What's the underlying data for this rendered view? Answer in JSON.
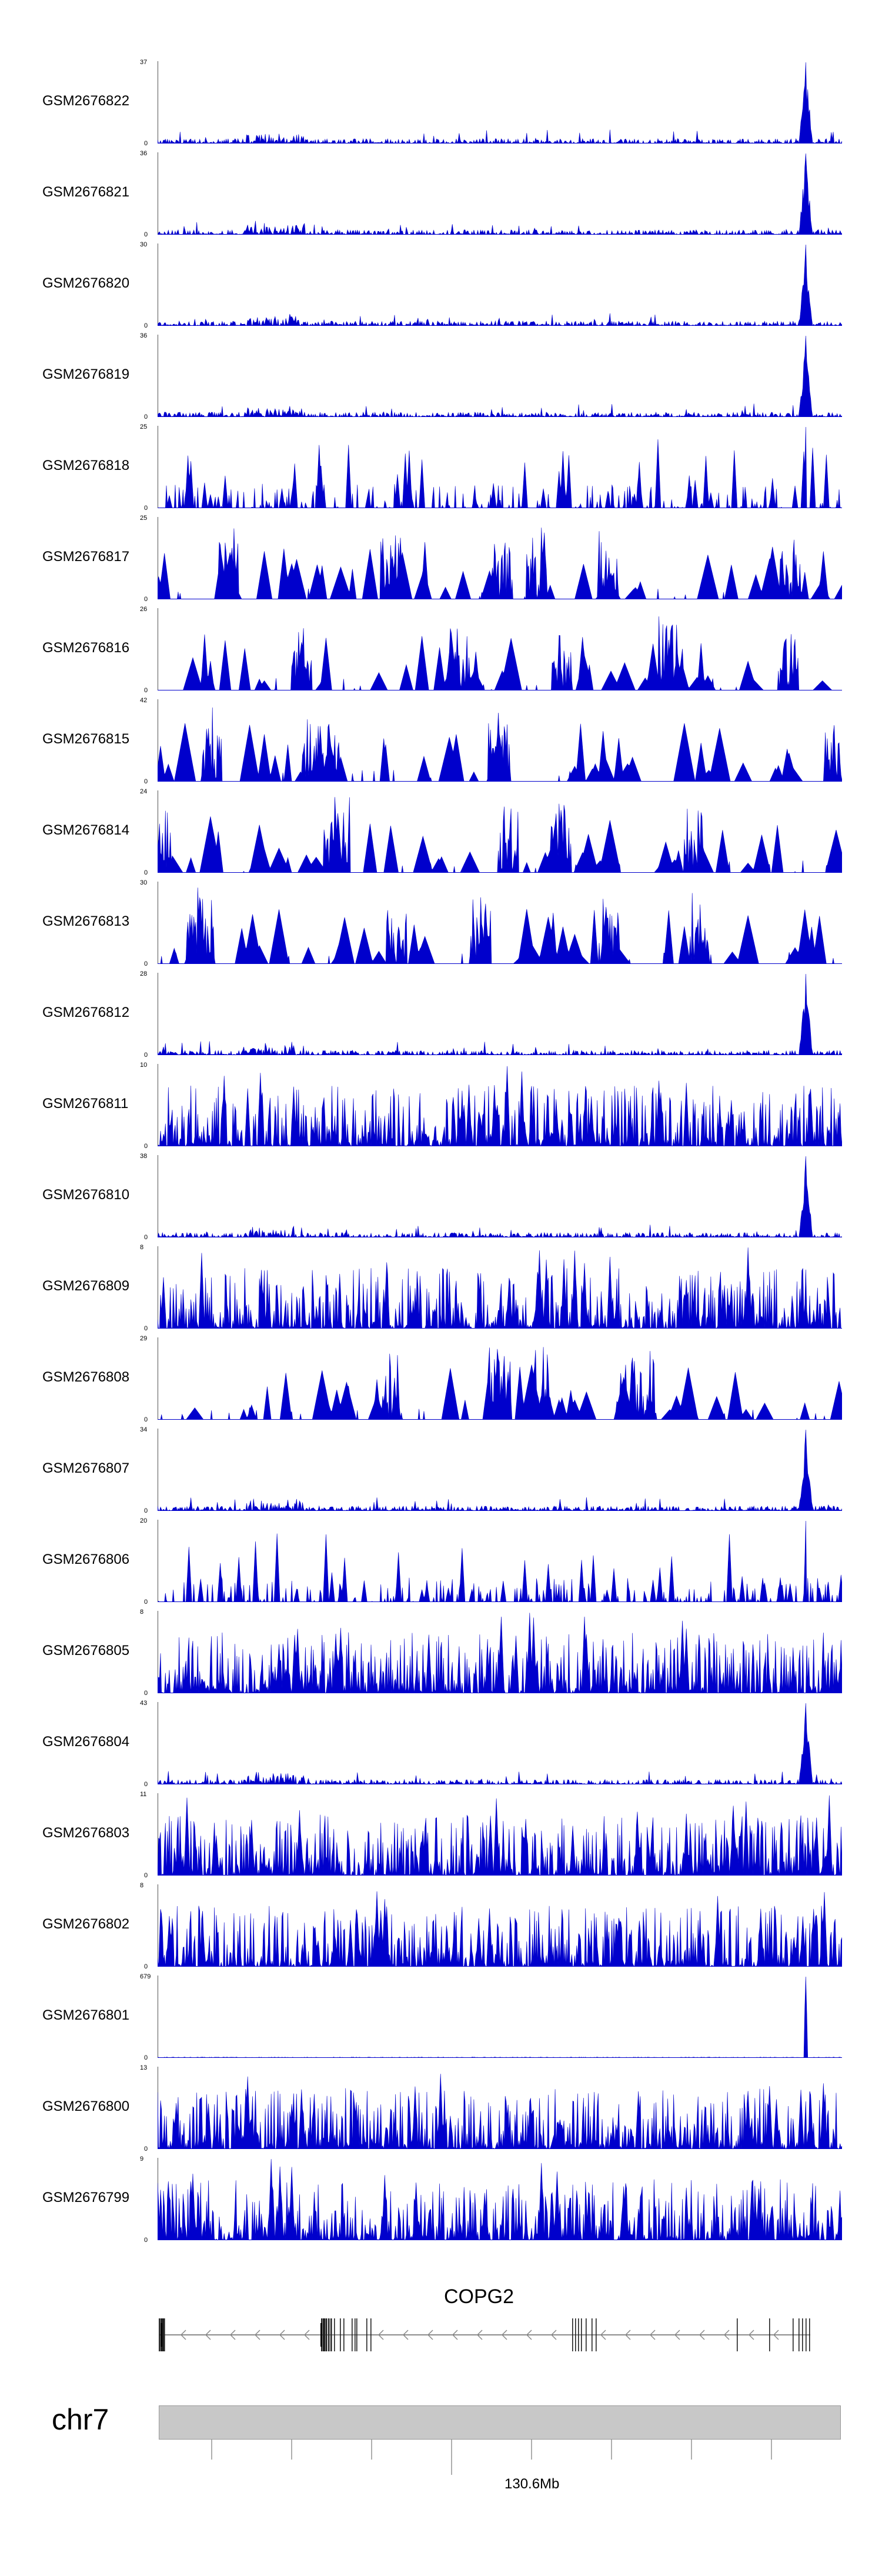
{
  "chart_data": {
    "type": "area",
    "color": "#0000cc",
    "tracks": [
      {
        "name": "GSM2676822",
        "max": 37,
        "min": 0,
        "profile": "peak"
      },
      {
        "name": "GSM2676821",
        "max": 36,
        "min": 0,
        "profile": "peak"
      },
      {
        "name": "GSM2676820",
        "max": 30,
        "min": 0,
        "profile": "peak"
      },
      {
        "name": "GSM2676819",
        "max": 36,
        "min": 0,
        "profile": "peak"
      },
      {
        "name": "GSM2676818",
        "max": 25,
        "min": 0,
        "profile": "mixed"
      },
      {
        "name": "GSM2676817",
        "max": 25,
        "min": 0,
        "profile": "sparse"
      },
      {
        "name": "GSM2676816",
        "max": 26,
        "min": 0,
        "profile": "sparse"
      },
      {
        "name": "GSM2676815",
        "max": 42,
        "min": 0,
        "profile": "sparse"
      },
      {
        "name": "GSM2676814",
        "max": 24,
        "min": 0,
        "profile": "sparse"
      },
      {
        "name": "GSM2676813",
        "max": 30,
        "min": 0,
        "profile": "sparse"
      },
      {
        "name": "GSM2676812",
        "max": 28,
        "min": 0,
        "profile": "peak"
      },
      {
        "name": "GSM2676811",
        "max": 10,
        "min": 0,
        "profile": "dense"
      },
      {
        "name": "GSM2676810",
        "max": 38,
        "min": 0,
        "profile": "peak"
      },
      {
        "name": "GSM2676809",
        "max": 8,
        "min": 0,
        "profile": "dense"
      },
      {
        "name": "GSM2676808",
        "max": 29,
        "min": 0,
        "profile": "sparse"
      },
      {
        "name": "GSM2676807",
        "max": 34,
        "min": 0,
        "profile": "peak"
      },
      {
        "name": "GSM2676806",
        "max": 20,
        "min": 0,
        "profile": "mixed"
      },
      {
        "name": "GSM2676805",
        "max": 8,
        "min": 0,
        "profile": "dense"
      },
      {
        "name": "GSM2676804",
        "max": 43,
        "min": 0,
        "profile": "peak"
      },
      {
        "name": "GSM2676803",
        "max": 11,
        "min": 0,
        "profile": "dense"
      },
      {
        "name": "GSM2676802",
        "max": 8,
        "min": 0,
        "profile": "dense"
      },
      {
        "name": "GSM2676801",
        "max": 679,
        "min": 0,
        "profile": "spike"
      },
      {
        "name": "GSM2676800",
        "max": 13,
        "min": 0,
        "profile": "dense"
      },
      {
        "name": "GSM2676799",
        "max": 9,
        "min": 0,
        "profile": "dense"
      }
    ],
    "gene": {
      "name": "COPG2",
      "strand": "-"
    },
    "chromosome": "chr7",
    "axis_tick_label": "130.6Mb",
    "grid": false
  }
}
